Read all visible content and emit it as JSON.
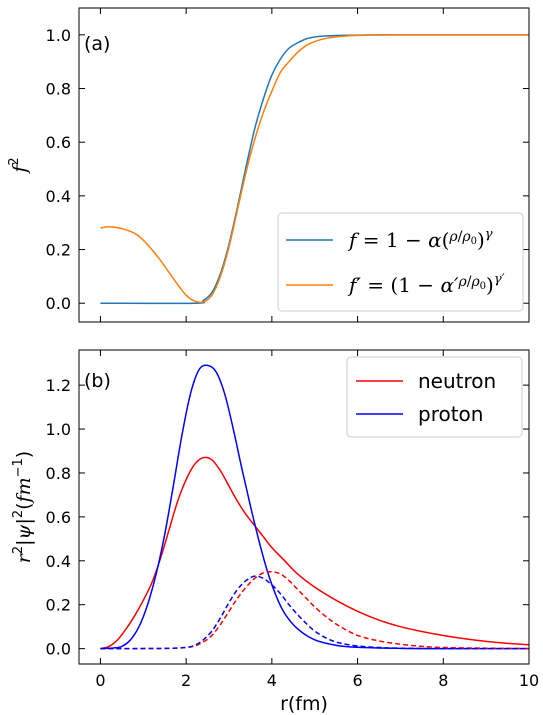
{
  "chart_data": [
    {
      "type": "line",
      "panel_label": "(a)",
      "ylabel": "f²",
      "xlim": [
        -0.5,
        10
      ],
      "ylim": [
        -0.07,
        1.1
      ],
      "yticks": [
        0.0,
        0.2,
        0.4,
        0.6,
        0.8,
        1.0
      ],
      "ytick_labels": [
        "0.0",
        "0.2",
        "0.4",
        "0.6",
        "0.8",
        "1.0"
      ],
      "xticks": [
        0,
        2,
        4,
        6,
        8,
        10
      ],
      "legend": {
        "position": "lower-right"
      },
      "series": [
        {
          "name": "f = 1 − α(ρ/ρ₀)^γ",
          "color": "#1f77b4",
          "x": [
            0,
            2.2,
            2.4,
            2.6,
            2.8,
            3.0,
            3.2,
            3.4,
            3.6,
            3.8,
            4.0,
            4.2,
            4.4,
            4.6,
            4.8,
            5.0,
            5.3,
            5.6,
            6.0,
            6.5,
            7,
            8,
            10
          ],
          "y": [
            0,
            0,
            0.01,
            0.04,
            0.11,
            0.22,
            0.36,
            0.51,
            0.65,
            0.76,
            0.85,
            0.91,
            0.95,
            0.97,
            0.985,
            0.992,
            0.996,
            0.998,
            0.999,
            1.0,
            1.0,
            1.0,
            1.0
          ]
        },
        {
          "name": "f′ = (1 − α′ρ/ρ₀)^γ′",
          "color": "#ff7f0e",
          "x": [
            0,
            0.2,
            0.5,
            0.8,
            1.0,
            1.2,
            1.4,
            1.6,
            1.8,
            2.0,
            2.2,
            2.4,
            2.6,
            2.8,
            3.0,
            3.2,
            3.4,
            3.6,
            3.8,
            4.0,
            4.2,
            4.4,
            4.6,
            4.8,
            5.0,
            5.3,
            5.6,
            6.0,
            6.5,
            7,
            8,
            10
          ],
          "y": [
            0.28,
            0.285,
            0.278,
            0.26,
            0.235,
            0.2,
            0.16,
            0.115,
            0.07,
            0.03,
            0.008,
            0.005,
            0.03,
            0.1,
            0.21,
            0.35,
            0.49,
            0.61,
            0.71,
            0.79,
            0.86,
            0.9,
            0.935,
            0.96,
            0.975,
            0.988,
            0.994,
            0.998,
            0.999,
            1.0,
            1.0,
            1.0
          ]
        }
      ]
    },
    {
      "type": "line",
      "panel_label": "(b)",
      "ylabel": "r²|ψ|²(fm⁻¹)",
      "xlabel": "r(fm)",
      "xlim": [
        -0.5,
        10
      ],
      "ylim": [
        -0.07,
        1.36
      ],
      "yticks": [
        0.0,
        0.2,
        0.4,
        0.6,
        0.8,
        1.0,
        1.2
      ],
      "ytick_labels": [
        "0.0",
        "0.2",
        "0.4",
        "0.6",
        "0.8",
        "1.0",
        "1.2"
      ],
      "xticks": [
        0,
        2,
        4,
        6,
        8,
        10
      ],
      "xtick_labels": [
        "0",
        "2",
        "4",
        "6",
        "8",
        "10"
      ],
      "legend": {
        "position": "top-right"
      },
      "series": [
        {
          "name": "neutron",
          "color": "#ff0000",
          "style": "solid",
          "x": [
            0,
            0.2,
            0.4,
            0.6,
            0.8,
            1.0,
            1.2,
            1.4,
            1.6,
            1.8,
            2.0,
            2.2,
            2.4,
            2.6,
            2.8,
            3.0,
            3.2,
            3.4,
            3.6,
            3.8,
            4.0,
            4.3,
            4.6,
            5.0,
            5.5,
            6.0,
            6.5,
            7.0,
            7.5,
            8.0,
            8.5,
            9.0,
            9.5,
            10.0
          ],
          "y": [
            0,
            0.01,
            0.04,
            0.09,
            0.15,
            0.22,
            0.3,
            0.41,
            0.54,
            0.67,
            0.77,
            0.84,
            0.87,
            0.86,
            0.81,
            0.74,
            0.67,
            0.61,
            0.56,
            0.51,
            0.46,
            0.4,
            0.34,
            0.28,
            0.22,
            0.17,
            0.13,
            0.1,
            0.078,
            0.06,
            0.045,
            0.033,
            0.024,
            0.018
          ]
        },
        {
          "name": "proton",
          "color": "#0000ff",
          "style": "solid",
          "x": [
            0,
            0.3,
            0.5,
            0.7,
            0.9,
            1.1,
            1.3,
            1.5,
            1.7,
            1.9,
            2.1,
            2.3,
            2.5,
            2.7,
            2.9,
            3.1,
            3.3,
            3.5,
            3.7,
            3.9,
            4.1,
            4.3,
            4.6,
            5.0,
            5.5,
            6.0,
            7.0,
            8.0,
            10.0
          ],
          "y": [
            0,
            0.003,
            0.01,
            0.04,
            0.1,
            0.2,
            0.34,
            0.52,
            0.74,
            0.97,
            1.16,
            1.27,
            1.29,
            1.26,
            1.16,
            1.0,
            0.82,
            0.65,
            0.49,
            0.35,
            0.24,
            0.16,
            0.09,
            0.04,
            0.015,
            0.006,
            0.001,
            0,
            0
          ]
        },
        {
          "color": "#ff0000",
          "style": "dashed",
          "x": [
            0,
            1.5,
            2.0,
            2.2,
            2.4,
            2.6,
            2.8,
            3.0,
            3.2,
            3.4,
            3.6,
            3.8,
            4.0,
            4.2,
            4.4,
            4.6,
            4.8,
            5.0,
            5.3,
            5.6,
            6.0,
            6.5,
            7.0,
            7.5,
            8.0,
            9.0,
            10.0
          ],
          "y": [
            0,
            0.001,
            0.005,
            0.012,
            0.03,
            0.06,
            0.11,
            0.17,
            0.23,
            0.28,
            0.32,
            0.345,
            0.35,
            0.34,
            0.31,
            0.27,
            0.23,
            0.19,
            0.14,
            0.1,
            0.06,
            0.035,
            0.02,
            0.01,
            0.005,
            0.002,
            0
          ]
        },
        {
          "color": "#0000ff",
          "style": "dashed",
          "x": [
            0,
            1.5,
            2.0,
            2.2,
            2.4,
            2.6,
            2.8,
            3.0,
            3.2,
            3.4,
            3.6,
            3.8,
            4.0,
            4.2,
            4.4,
            4.6,
            4.8,
            5.0,
            5.3,
            5.6,
            6.0,
            6.5,
            7.0,
            8.0,
            10.0
          ],
          "y": [
            0,
            0.001,
            0.006,
            0.015,
            0.04,
            0.08,
            0.14,
            0.21,
            0.27,
            0.31,
            0.33,
            0.32,
            0.29,
            0.25,
            0.2,
            0.155,
            0.115,
            0.08,
            0.045,
            0.025,
            0.012,
            0.005,
            0.002,
            0,
            0
          ]
        }
      ]
    }
  ]
}
